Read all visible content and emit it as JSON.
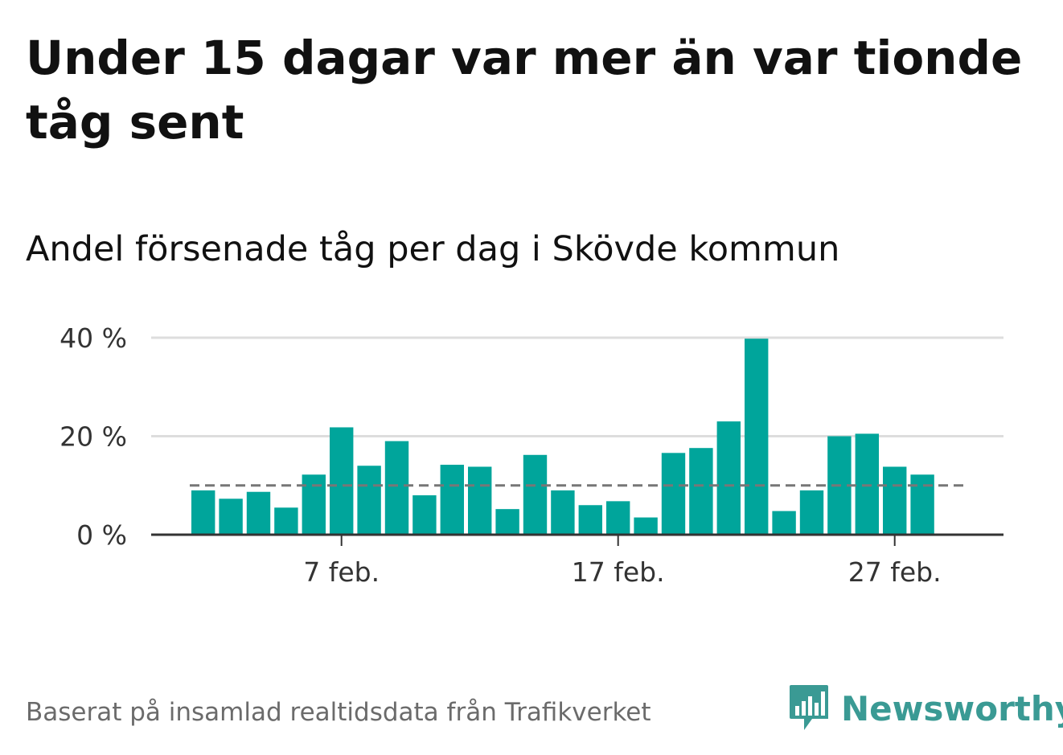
{
  "title": "Under 15 dagar var mer än var tionde tåg sent",
  "subtitle": "Andel försenade tåg per dag i Skövde kommun",
  "footer": "Baserat på insamlad realtidsdata från Trafikverket",
  "brand": {
    "name": "Newsworthy",
    "color": "#3a9a94",
    "icon": "newsworthy-bar-chart-icon"
  },
  "colors": {
    "bar": "#00a59b",
    "reference_line": "#777777",
    "grid": "#dddddd",
    "axis": "#333333"
  },
  "chart_data": {
    "type": "bar",
    "title": "",
    "xlabel": "",
    "ylabel": "",
    "categories": [
      "2 feb.",
      "3 feb.",
      "4 feb.",
      "5 feb.",
      "6 feb.",
      "7 feb.",
      "8 feb.",
      "9 feb.",
      "10 feb.",
      "11 feb.",
      "12 feb.",
      "13 feb.",
      "14 feb.",
      "15 feb.",
      "16 feb.",
      "17 feb.",
      "18 feb.",
      "19 feb.",
      "20 feb.",
      "21 feb.",
      "22 feb.",
      "23 feb.",
      "24 feb.",
      "25 feb.",
      "26 feb.",
      "27 feb.",
      "28 feb."
    ],
    "values": [
      9,
      7.3,
      8.7,
      5.5,
      12.2,
      21.8,
      14,
      19,
      8,
      14.2,
      13.8,
      5.2,
      16.2,
      9,
      6,
      6.8,
      3.5,
      16.6,
      17.6,
      23,
      39.8,
      4.8,
      9,
      20,
      20.5,
      13.8,
      12.2
    ],
    "ylim": [
      0,
      40
    ],
    "yticks": [
      0,
      20,
      40
    ],
    "ytick_labels": [
      "0 %",
      "20 %",
      "40 %"
    ],
    "xtick_labels": [
      "7 feb.",
      "17 feb.",
      "27 feb."
    ],
    "reference_line": 10,
    "grid": true
  }
}
